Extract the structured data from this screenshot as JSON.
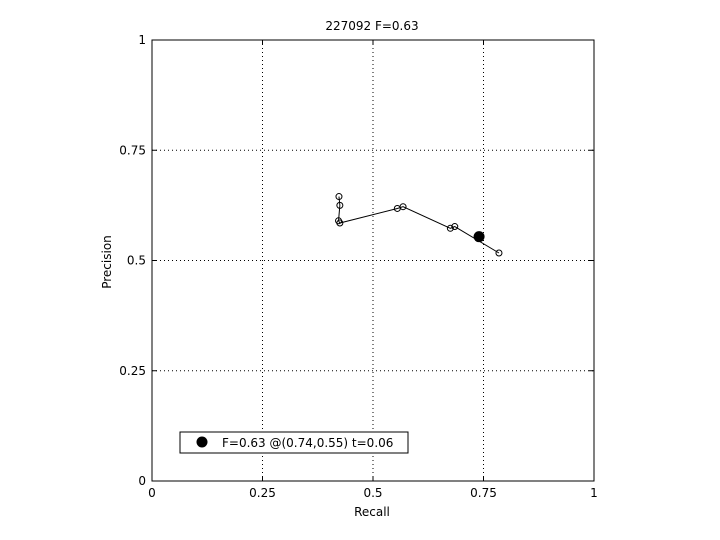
{
  "chart_data": {
    "type": "scatter",
    "title": "227092 F=0.63",
    "xlabel": "Recall",
    "ylabel": "Precision",
    "xlim": [
      0,
      1
    ],
    "ylim": [
      0,
      1
    ],
    "xticks": [
      0,
      0.25,
      0.5,
      0.75,
      1
    ],
    "yticks": [
      0,
      0.25,
      0.5,
      0.75,
      1
    ],
    "xtick_labels": [
      "0",
      "0.25",
      "0.5",
      "0.75",
      "1"
    ],
    "ytick_labels": [
      "0",
      "0.25",
      "0.5",
      "0.75",
      "1"
    ],
    "grid": true,
    "legend_position": "bottom-left",
    "series": [
      {
        "style": "line-with-open-circles",
        "color": "#000000",
        "x": [
          0.423,
          0.425,
          0.422,
          0.425,
          0.555,
          0.568,
          0.675,
          0.685,
          0.785
        ],
        "y": [
          0.645,
          0.625,
          0.59,
          0.585,
          0.618,
          0.622,
          0.573,
          0.577,
          0.517
        ]
      }
    ],
    "best_point": {
      "x": 0.74,
      "y": 0.554,
      "color": "#000000"
    },
    "legend": {
      "label": "F=0.63 @(0.74,0.55) t=0.06"
    }
  }
}
